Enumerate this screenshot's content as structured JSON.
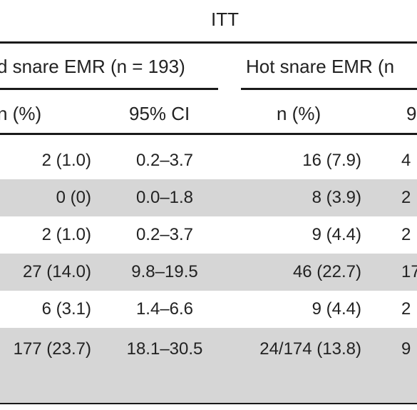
{
  "table": {
    "group_header": "ITT",
    "column_groups": [
      "d snare EMR (n = 193)",
      "Hot snare EMR (n"
    ],
    "column_headers": [
      "n (%)",
      "95% CI",
      "n (%)",
      "9"
    ],
    "rows": [
      [
        "2 (1.0)",
        "0.2–3.7",
        "16 (7.9)",
        "4"
      ],
      [
        "0 (0)",
        "0.0–1.8",
        "8 (3.9)",
        "2"
      ],
      [
        "2 (1.0)",
        "0.2–3.7",
        "9 (4.4)",
        "2"
      ],
      [
        "27 (14.0)",
        "9.8–19.5",
        "46 (22.7)",
        "17"
      ],
      [
        "6 (3.1)",
        "1.4–6.6",
        "9 (4.4)",
        "2"
      ],
      [
        "177 (23.7)",
        "18.1–30.5",
        "24/174 (13.8)",
        "9"
      ]
    ],
    "shaded_rows": [
      1,
      3,
      5
    ],
    "shade_color": "#d6d6d6"
  }
}
